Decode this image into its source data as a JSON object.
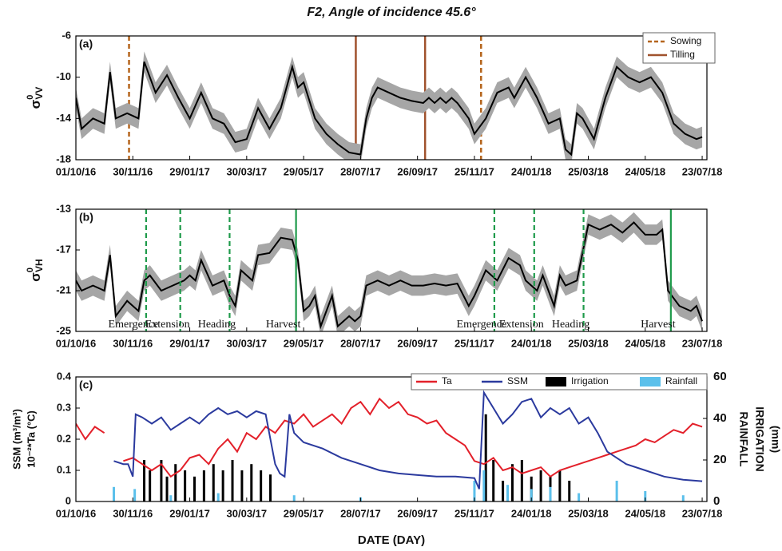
{
  "chart_data": [
    {
      "type": "line",
      "title": "F2, Angle of incidence 45.6°",
      "panel_label": "(a)",
      "ylabel": {
        "base": "σ",
        "sup": "0",
        "sub": "VV"
      },
      "xlim": [
        0,
        665
      ],
      "ylim": [
        -18,
        -6
      ],
      "yticks": [
        -6,
        -10,
        -14,
        -18
      ],
      "xticks": [
        {
          "value": 0,
          "label": "01/10/16"
        },
        {
          "value": 60,
          "label": "30/11/16"
        },
        {
          "value": 120,
          "label": "29/01/17"
        },
        {
          "value": 180,
          "label": "30/03/17"
        },
        {
          "value": 240,
          "label": "29/05/17"
        },
        {
          "value": 300,
          "label": "28/07/17"
        },
        {
          "value": 360,
          "label": "26/09/17"
        },
        {
          "value": 420,
          "label": "25/11/17"
        },
        {
          "value": 480,
          "label": "24/01/18"
        },
        {
          "value": 540,
          "label": "25/03/18"
        },
        {
          "value": 600,
          "label": "24/05/18"
        },
        {
          "value": 660,
          "label": "23/07/18"
        }
      ],
      "legend": "upper right",
      "series": [
        {
          "color": "#000000",
          "band_color": "#a6a6a6",
          "error": 1,
          "x": [
            0,
            6,
            18,
            30,
            36,
            42,
            54,
            66,
            72,
            84,
            96,
            108,
            120,
            132,
            144,
            156,
            168,
            180,
            192,
            204,
            216,
            228,
            234,
            240,
            252,
            264,
            276,
            288,
            300,
            306,
            312,
            318,
            330,
            342,
            354,
            366,
            372,
            378,
            384,
            390,
            396,
            402,
            414,
            420,
            432,
            444,
            456,
            462,
            474,
            486,
            498,
            510,
            516,
            522,
            528,
            534,
            546,
            558,
            570,
            582,
            594,
            606,
            618,
            630,
            642,
            654,
            660
          ],
          "values": [
            -12,
            -15,
            -14,
            -14.5,
            -9.5,
            -14,
            -13.5,
            -14,
            -8.5,
            -11.5,
            -9.8,
            -12,
            -14,
            -11.5,
            -14,
            -14.5,
            -16.3,
            -16,
            -13,
            -15,
            -13,
            -9,
            -11,
            -10.5,
            -14,
            -15.5,
            -16.5,
            -17.3,
            -17.5,
            -14,
            -12,
            -11,
            -11.5,
            -12,
            -12.3,
            -12.5,
            -12,
            -12.5,
            -12,
            -12.5,
            -12,
            -12.5,
            -14,
            -15.5,
            -14,
            -11.5,
            -11,
            -12,
            -10,
            -12,
            -14.5,
            -14,
            -17,
            -17.5,
            -13.5,
            -14,
            -16,
            -12,
            -9,
            -10,
            -10.5,
            -10,
            -11.5,
            -14.5,
            -15.5,
            -16,
            -15.8
          ]
        }
      ],
      "markers": [
        {
          "name": "Sowing",
          "color": "#b5651d",
          "dash": true,
          "x": [
            56,
            427
          ]
        },
        {
          "name": "Tilling",
          "color": "#a0522d",
          "dash": false,
          "x": [
            295,
            368
          ]
        }
      ]
    },
    {
      "type": "line",
      "panel_label": "(b)",
      "ylabel": {
        "base": "σ",
        "sup": "0",
        "sub": "VH"
      },
      "xlim": [
        0,
        665
      ],
      "ylim": [
        -25,
        -13
      ],
      "yticks": [
        -13,
        -17,
        -21,
        -25
      ],
      "xticks": [
        {
          "value": 0,
          "label": "01/10/16"
        },
        {
          "value": 60,
          "label": "30/11/16"
        },
        {
          "value": 120,
          "label": "29/01/17"
        },
        {
          "value": 180,
          "label": "30/03/17"
        },
        {
          "value": 240,
          "label": "29/05/17"
        },
        {
          "value": 300,
          "label": "28/07/17"
        },
        {
          "value": 360,
          "label": "26/09/17"
        },
        {
          "value": 420,
          "label": "25/11/17"
        },
        {
          "value": 480,
          "label": "24/01/18"
        },
        {
          "value": 540,
          "label": "25/03/18"
        },
        {
          "value": 600,
          "label": "24/05/18"
        },
        {
          "value": 660,
          "label": "23/07/18"
        }
      ],
      "series": [
        {
          "color": "#000000",
          "band_color": "#a6a6a6",
          "error": 1,
          "x": [
            0,
            6,
            18,
            30,
            36,
            42,
            54,
            66,
            72,
            78,
            90,
            102,
            114,
            120,
            126,
            132,
            144,
            156,
            162,
            168,
            174,
            186,
            192,
            204,
            216,
            228,
            234,
            240,
            246,
            252,
            258,
            264,
            270,
            276,
            282,
            288,
            294,
            300,
            306,
            318,
            330,
            342,
            354,
            366,
            378,
            390,
            402,
            414,
            420,
            432,
            444,
            456,
            468,
            474,
            486,
            492,
            504,
            510,
            516,
            528,
            540,
            552,
            564,
            576,
            588,
            600,
            612,
            618,
            624,
            636,
            648,
            654,
            660
          ],
          "values": [
            -20,
            -21,
            -20.5,
            -21,
            -17.5,
            -23.5,
            -22,
            -23,
            -20,
            -19.5,
            -21,
            -20.5,
            -20,
            -19.5,
            -20,
            -18,
            -20.5,
            -20,
            -21.5,
            -22.5,
            -19,
            -20,
            -17.5,
            -17.3,
            -15.8,
            -16,
            -18,
            -23,
            -22.5,
            -21.5,
            -24.5,
            -23,
            -21.5,
            -24.5,
            -24,
            -23.5,
            -24,
            -23.5,
            -20.5,
            -20,
            -20.5,
            -20,
            -20.5,
            -20.5,
            -20.3,
            -20.5,
            -20.3,
            -22.5,
            -21.5,
            -19,
            -20,
            -17.8,
            -18.5,
            -20,
            -21,
            -19.5,
            -22.5,
            -19.5,
            -20.5,
            -20,
            -14.5,
            -15,
            -14.5,
            -15.3,
            -14.3,
            -15.5,
            -15.5,
            -15,
            -21,
            -22.5,
            -23,
            -22.5,
            -24
          ]
        }
      ],
      "phase_color": "#1e9a4a",
      "phases": [
        {
          "label": "Emergence",
          "x": 74,
          "dash": true
        },
        {
          "label": "Extension",
          "x": 110,
          "dash": true
        },
        {
          "label": "Heading",
          "x": 162,
          "dash": true
        },
        {
          "label": "Harvest",
          "x": 232,
          "dash": false
        },
        {
          "label": "Emergence",
          "x": 441,
          "dash": true
        },
        {
          "label": "Extension",
          "x": 483,
          "dash": true
        },
        {
          "label": "Heading",
          "x": 535,
          "dash": true
        },
        {
          "label": "Harvest",
          "x": 627,
          "dash": false
        }
      ]
    },
    {
      "type": "combo",
      "panel_label": "(c)",
      "ylabel": [
        "SSM (m³/m³)",
        "10⁻²*Ta (°C)"
      ],
      "y2label": [
        "RAINFALL",
        "IRRIGATION",
        "(mm)"
      ],
      "xlabel": "DATE (DAY)",
      "xlim": [
        0,
        665
      ],
      "ylim": [
        0,
        0.4
      ],
      "yticks": [
        0,
        0.1,
        0.2,
        0.3,
        0.4
      ],
      "y2lim": [
        0,
        60
      ],
      "y2ticks": [
        0,
        20,
        40,
        60
      ],
      "xticks": [
        {
          "value": 0,
          "label": "01/10/16"
        },
        {
          "value": 60,
          "label": "30/11/16"
        },
        {
          "value": 120,
          "label": "29/01/17"
        },
        {
          "value": 180,
          "label": "30/03/17"
        },
        {
          "value": 240,
          "label": "29/05/17"
        },
        {
          "value": 300,
          "label": "28/07/17"
        },
        {
          "value": 360,
          "label": "26/09/17"
        },
        {
          "value": 420,
          "label": "25/11/17"
        },
        {
          "value": 480,
          "label": "24/01/18"
        },
        {
          "value": 540,
          "label": "25/03/18"
        },
        {
          "value": 600,
          "label": "24/05/18"
        },
        {
          "value": 660,
          "label": "23/07/18"
        }
      ],
      "legend": "upper right",
      "series": [
        {
          "name": "Ta",
          "type": "line",
          "color": "#e3202a",
          "x": [
            0,
            10,
            20,
            30,
            40,
            50,
            60,
            70,
            80,
            90,
            100,
            110,
            120,
            130,
            140,
            150,
            160,
            170,
            180,
            190,
            200,
            210,
            220,
            230,
            240,
            250,
            260,
            270,
            280,
            290,
            300,
            310,
            320,
            330,
            340,
            350,
            360,
            370,
            380,
            390,
            400,
            410,
            420,
            430,
            440,
            450,
            460,
            470,
            480,
            490,
            500,
            510,
            520,
            530,
            540,
            550,
            560,
            570,
            580,
            590,
            600,
            610,
            620,
            630,
            640,
            650,
            660
          ],
          "values": [
            0.25,
            0.2,
            0.24,
            0.22,
            null,
            0.13,
            0.14,
            0.12,
            0.1,
            0.12,
            0.08,
            0.1,
            0.14,
            0.15,
            0.12,
            0.17,
            0.2,
            0.16,
            0.22,
            0.2,
            0.24,
            0.22,
            0.26,
            0.25,
            0.28,
            0.24,
            0.26,
            0.28,
            0.25,
            0.3,
            0.32,
            0.28,
            0.33,
            0.3,
            0.32,
            0.28,
            0.27,
            0.25,
            0.26,
            0.22,
            0.2,
            0.18,
            0.13,
            0.12,
            0.14,
            0.1,
            0.11,
            0.09,
            0.1,
            0.11,
            0.08,
            0.1,
            0.11,
            0.12,
            0.13,
            0.14,
            0.15,
            0.16,
            0.17,
            0.18,
            0.2,
            0.19,
            0.21,
            0.23,
            0.22,
            0.25,
            0.24
          ]
        },
        {
          "name": "SSM",
          "type": "line",
          "color": "#2b3a9e",
          "x": [
            40,
            50,
            55,
            60,
            63,
            70,
            80,
            90,
            100,
            110,
            120,
            130,
            140,
            150,
            160,
            170,
            180,
            190,
            200,
            210,
            215,
            220,
            225,
            230,
            240,
            260,
            280,
            300,
            320,
            340,
            360,
            380,
            400,
            420,
            425,
            430,
            440,
            450,
            460,
            470,
            480,
            490,
            500,
            510,
            520,
            530,
            540,
            550,
            560,
            570,
            580,
            600,
            620,
            640,
            660
          ],
          "values": [
            0.13,
            0.12,
            0.12,
            0.08,
            0.28,
            0.27,
            0.25,
            0.27,
            0.23,
            0.25,
            0.27,
            0.25,
            0.28,
            0.3,
            0.28,
            0.29,
            0.27,
            0.29,
            0.28,
            0.12,
            0.09,
            0.08,
            0.28,
            0.22,
            0.19,
            0.17,
            0.14,
            0.12,
            0.1,
            0.09,
            0.085,
            0.08,
            0.08,
            0.075,
            0.04,
            0.35,
            0.3,
            0.25,
            0.28,
            0.32,
            0.33,
            0.27,
            0.3,
            0.28,
            0.3,
            0.25,
            0.27,
            0.22,
            0.16,
            0.14,
            0.12,
            0.1,
            0.08,
            0.07,
            0.065
          ]
        },
        {
          "name": "Irrigation",
          "type": "bar",
          "axis": "y2",
          "color": "#000000",
          "x": [
            72,
            78,
            90,
            96,
            105,
            115,
            125,
            135,
            145,
            155,
            165,
            175,
            185,
            195,
            205,
            432,
            440,
            450,
            460,
            470,
            480,
            490,
            500,
            510,
            520
          ],
          "values": [
            20,
            15,
            20,
            12,
            18,
            15,
            12,
            15,
            18,
            15,
            20,
            15,
            18,
            15,
            13,
            42,
            20,
            10,
            18,
            20,
            12,
            15,
            12,
            15,
            10
          ]
        },
        {
          "name": "Rainfall",
          "type": "bar",
          "axis": "y2",
          "color": "#5bc0eb",
          "x": [
            40,
            62,
            100,
            150,
            230,
            300,
            420,
            430,
            455,
            480,
            500,
            530,
            570,
            600,
            640
          ],
          "values": [
            7,
            6,
            3,
            4,
            3,
            2,
            10,
            15,
            8,
            6,
            7,
            4,
            10,
            5,
            3
          ]
        }
      ]
    }
  ]
}
